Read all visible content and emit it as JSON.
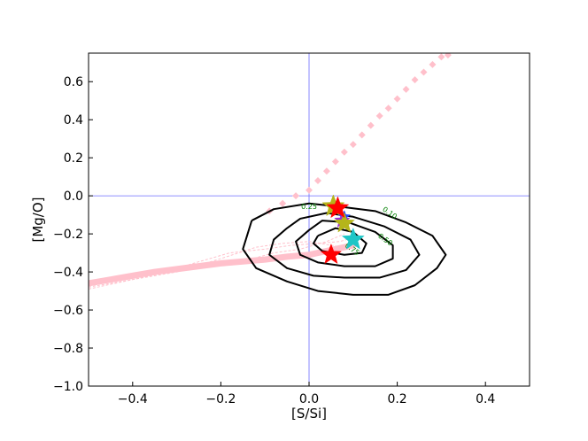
{
  "chart_data": {
    "type": "scatter",
    "xlabel": "[S/Si]",
    "ylabel": "[Mg/O]",
    "xlim": [
      -0.5,
      0.5
    ],
    "ylim": [
      -1.0,
      0.75
    ],
    "xticks": [
      -0.4,
      -0.2,
      0.0,
      0.2,
      0.4
    ],
    "yticks": [
      -1.0,
      -0.8,
      -0.6,
      -0.4,
      -0.2,
      0.0,
      0.2,
      0.4,
      0.6
    ],
    "xtick_labels": [
      "−0.4",
      "−0.2",
      "0.0",
      "0.2",
      "0.4"
    ],
    "ytick_labels": [
      "−1.0",
      "−0.8",
      "−0.6",
      "−0.4",
      "−0.2",
      "0.0",
      "0.2",
      "0.4",
      "0.6"
    ],
    "grid": false,
    "reference_lines": {
      "x": 0.0,
      "y": 0.0,
      "color": "#6b6bff"
    },
    "colors": {
      "contour": "#000000",
      "contour_label": "#008000",
      "track": "#ffc0cb",
      "star_red": "#ff0000",
      "star_olive": "#b5b51a",
      "star_cyan": "#1fc6c6",
      "star_purple": "#9b30d0",
      "star_blue": "#2040ff"
    },
    "contours": [
      {
        "level": "0.10",
        "points": [
          [
            -0.13,
            -0.13
          ],
          [
            -0.08,
            -0.07
          ],
          [
            0.0,
            -0.04
          ],
          [
            0.08,
            -0.06
          ],
          [
            0.15,
            -0.08
          ],
          [
            0.22,
            -0.14
          ],
          [
            0.28,
            -0.21
          ],
          [
            0.31,
            -0.31
          ],
          [
            0.29,
            -0.38
          ],
          [
            0.24,
            -0.47
          ],
          [
            0.18,
            -0.52
          ],
          [
            0.1,
            -0.52
          ],
          [
            0.02,
            -0.5
          ],
          [
            -0.05,
            -0.45
          ],
          [
            -0.12,
            -0.38
          ],
          [
            -0.15,
            -0.28
          ],
          [
            -0.13,
            -0.13
          ]
        ],
        "label_pos": [
          0.18,
          -0.1
        ]
      },
      {
        "level": "0.25",
        "points": [
          [
            -0.05,
            -0.17
          ],
          [
            -0.02,
            -0.12
          ],
          [
            0.04,
            -0.09
          ],
          [
            0.1,
            -0.11
          ],
          [
            0.17,
            -0.16
          ],
          [
            0.23,
            -0.23
          ],
          [
            0.25,
            -0.31
          ],
          [
            0.22,
            -0.39
          ],
          [
            0.16,
            -0.43
          ],
          [
            0.08,
            -0.43
          ],
          [
            0.01,
            -0.42
          ],
          [
            -0.05,
            -0.38
          ],
          [
            -0.09,
            -0.31
          ],
          [
            -0.08,
            -0.23
          ],
          [
            -0.05,
            -0.17
          ]
        ]
      },
      {
        "level": "0.50",
        "points": [
          [
            0.0,
            -0.18
          ],
          [
            0.03,
            -0.13
          ],
          [
            0.09,
            -0.14
          ],
          [
            0.15,
            -0.19
          ],
          [
            0.19,
            -0.26
          ],
          [
            0.19,
            -0.33
          ],
          [
            0.15,
            -0.37
          ],
          [
            0.08,
            -0.37
          ],
          [
            0.02,
            -0.35
          ],
          [
            -0.02,
            -0.31
          ],
          [
            -0.03,
            -0.24
          ],
          [
            0.0,
            -0.18
          ]
        ],
        "label_pos": [
          0.17,
          -0.24
        ]
      },
      {
        "level": "0.75",
        "points": [
          [
            0.02,
            -0.21
          ],
          [
            0.06,
            -0.17
          ],
          [
            0.1,
            -0.19
          ],
          [
            0.13,
            -0.25
          ],
          [
            0.12,
            -0.3
          ],
          [
            0.08,
            -0.31
          ],
          [
            0.03,
            -0.29
          ],
          [
            0.01,
            -0.25
          ],
          [
            0.02,
            -0.21
          ]
        ],
        "label_pos": [
          0.095,
          -0.29
        ]
      }
    ],
    "contour_label_025_pos": [
      0.0,
      -0.07
    ],
    "track_dotted": {
      "x": [
        -0.09,
        -0.06,
        -0.03,
        0.0,
        0.02,
        0.04,
        0.06,
        0.08,
        0.1,
        0.12,
        0.14,
        0.16,
        0.18,
        0.2,
        0.22,
        0.24,
        0.26,
        0.28,
        0.3,
        0.315
      ],
      "y": [
        -0.08,
        -0.04,
        0.0,
        0.03,
        0.08,
        0.13,
        0.18,
        0.23,
        0.27,
        0.32,
        0.37,
        0.42,
        0.46,
        0.51,
        0.56,
        0.61,
        0.65,
        0.69,
        0.73,
        0.74
      ]
    },
    "track_thick": {
      "x": [
        -0.5,
        -0.45,
        -0.4,
        -0.35,
        -0.3,
        -0.25,
        -0.2,
        -0.15,
        -0.1,
        -0.05,
        0.0,
        0.02,
        0.04,
        0.06,
        0.08,
        0.1
      ],
      "y": [
        -0.46,
        -0.44,
        -0.42,
        -0.4,
        -0.385,
        -0.37,
        -0.355,
        -0.345,
        -0.335,
        -0.32,
        -0.31,
        -0.3,
        -0.29,
        -0.28,
        -0.27,
        -0.26
      ]
    },
    "track_thin": [
      {
        "x": [
          -0.5,
          -0.3,
          -0.2,
          -0.12,
          -0.06,
          0.0,
          0.05,
          0.1
        ],
        "y": [
          -0.48,
          -0.4,
          -0.33,
          -0.27,
          -0.25,
          -0.24,
          -0.26,
          -0.28
        ]
      },
      {
        "x": [
          -0.5,
          -0.3,
          -0.18,
          -0.1,
          -0.04,
          0.02,
          0.07,
          0.1
        ],
        "y": [
          -0.47,
          -0.38,
          -0.3,
          -0.28,
          -0.26,
          -0.25,
          -0.24,
          -0.22
        ]
      },
      {
        "x": [
          -0.5,
          -0.3,
          -0.16,
          -0.08,
          -0.02,
          0.04,
          0.08
        ],
        "y": [
          -0.49,
          -0.39,
          -0.35,
          -0.3,
          -0.28,
          -0.24,
          -0.2
        ]
      }
    ],
    "stars": [
      {
        "x": 0.055,
        "y": -0.055,
        "color": "star_olive",
        "size": 13
      },
      {
        "x": 0.08,
        "y": -0.11,
        "color": "star_blue",
        "size": 7
      },
      {
        "x": 0.075,
        "y": -0.13,
        "color": "star_purple",
        "size": 9
      },
      {
        "x": 0.08,
        "y": -0.145,
        "color": "star_olive",
        "size": 12
      },
      {
        "x": 0.065,
        "y": -0.065,
        "color": "star_red",
        "size": 13
      },
      {
        "x": 0.1,
        "y": -0.23,
        "color": "star_cyan",
        "size": 13
      },
      {
        "x": 0.05,
        "y": -0.31,
        "color": "star_red",
        "size": 12
      }
    ]
  }
}
